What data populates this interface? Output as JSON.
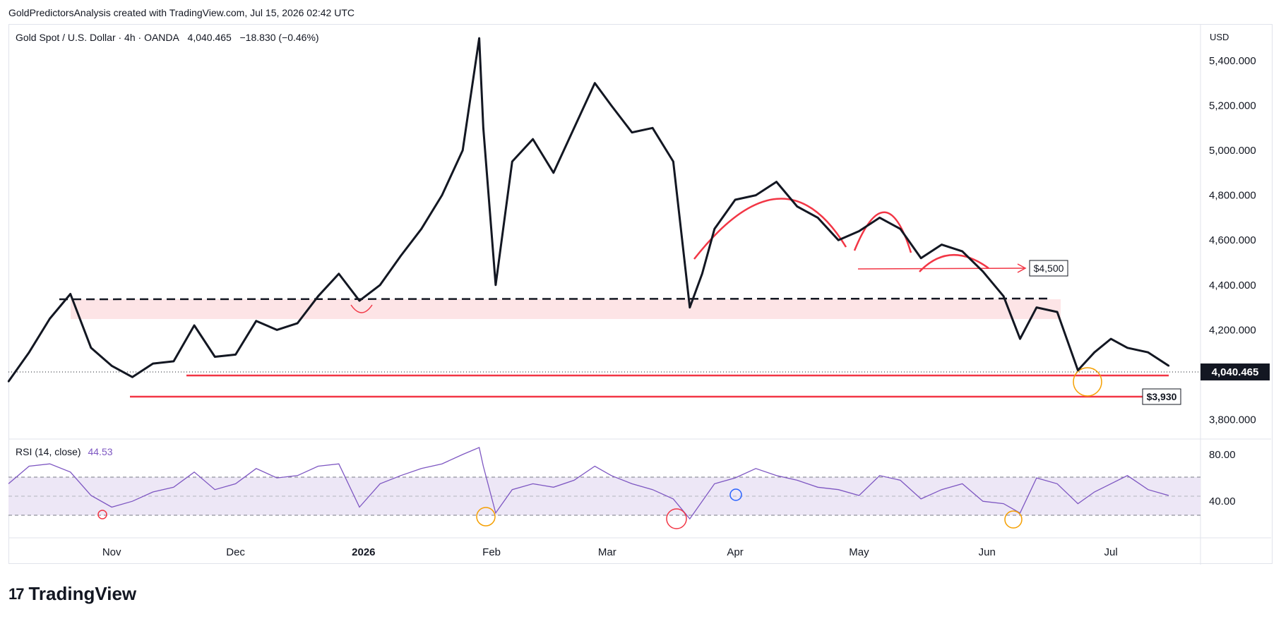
{
  "caption": "GoldPredictorsAnalysis created with TradingView.com, Jul 15, 2026 02:42 UTC",
  "legend": {
    "symbol": "Gold Spot / U.S. Dollar · 4h · OANDA",
    "price": "4,040.465",
    "change": "−18.830 (−0.46%)"
  },
  "currency": "USD",
  "rsi_legend": {
    "label": "RSI (14, close)",
    "value": "44.53"
  },
  "brand": {
    "logo": "17",
    "name": "TradingView"
  },
  "colors": {
    "price_line": "#131722",
    "annotation_red": "#f23645",
    "zone_fill": "#fde4e6",
    "rsi_line": "#7e57c2",
    "rsi_band": "#ede7f6",
    "orange": "#f59f00",
    "blue_circle": "#2962ff"
  },
  "chart_data": [
    {
      "type": "line",
      "series": [
        {
          "x": [
            "Oct 07",
            "Oct 12",
            "Oct 17",
            "Oct 22",
            "Oct 27",
            "Nov 01",
            "Nov 06",
            "Nov 11",
            "Nov 16",
            "Nov 21",
            "Nov 26",
            "Dec 01",
            "Dec 06",
            "Dec 11",
            "Dec 16",
            "Dec 21",
            "Dec 26",
            "Dec 31",
            "Jan 05",
            "Jan 10",
            "Jan 15",
            "Jan 20",
            "Jan 25",
            "Jan 29",
            "Jan 30",
            "Feb 02",
            "Feb 06",
            "Feb 11",
            "Feb 16",
            "Feb 21",
            "Feb 26",
            "Mar 02",
            "Mar 07",
            "Mar 12",
            "Mar 17",
            "Mar 21",
            "Mar 24",
            "Mar 27",
            "Apr 01",
            "Apr 06",
            "Apr 11",
            "Apr 16",
            "Apr 21",
            "Apr 26",
            "May 01",
            "May 06",
            "May 11",
            "May 16",
            "May 21",
            "May 26",
            "May 31",
            "Jun 05",
            "Jun 09",
            "Jun 13",
            "Jun 18",
            "Jun 23",
            "Jun 27",
            "Jul 01",
            "Jul 05",
            "Jul 10",
            "Jul 15"
          ],
          "values": [
            3970,
            4100,
            4250,
            4360,
            4120,
            4040,
            3990,
            4050,
            4060,
            4220,
            4080,
            4090,
            4240,
            4200,
            4230,
            4350,
            4450,
            4330,
            4400,
            4530,
            4650,
            4800,
            5000,
            5500,
            5100,
            4400,
            4950,
            5050,
            4900,
            5100,
            5300,
            5200,
            5080,
            5100,
            4950,
            4300,
            4450,
            4650,
            4780,
            4800,
            4860,
            4750,
            4700,
            4600,
            4640,
            4700,
            4650,
            4520,
            4580,
            4550,
            4460,
            4350,
            4160,
            4300,
            4280,
            4020,
            4100,
            4160,
            4120,
            4100,
            4040
          ]
        }
      ],
      "ylim": [
        3720,
        5560
      ],
      "y_ticks": [
        "3,800.000",
        "4,000.000",
        "4,200.000",
        "4,400.000",
        "4,600.000",
        "4,800.000",
        "5,000.000",
        "5,200.000",
        "5,400.000"
      ],
      "x_ticks": [
        "Nov",
        "Dec",
        "2026",
        "Feb",
        "Mar",
        "Apr",
        "May",
        "Jun",
        "Jul"
      ],
      "last_price": "4,040.465",
      "annotations": {
        "target": "$4,500",
        "support": "$3,930"
      }
    },
    {
      "type": "line",
      "series": [
        {
          "x": [
            "Oct 07",
            "Oct 12",
            "Oct 17",
            "Oct 22",
            "Oct 27",
            "Nov 01",
            "Nov 06",
            "Nov 11",
            "Nov 16",
            "Nov 21",
            "Nov 26",
            "Dec 01",
            "Dec 06",
            "Dec 11",
            "Dec 16",
            "Dec 21",
            "Dec 26",
            "Dec 31",
            "Jan 05",
            "Jan 10",
            "Jan 15",
            "Jan 20",
            "Jan 25",
            "Jan 29",
            "Jan 30",
            "Feb 02",
            "Feb 06",
            "Feb 11",
            "Feb 16",
            "Feb 21",
            "Feb 26",
            "Mar 02",
            "Mar 07",
            "Mar 12",
            "Mar 17",
            "Mar 21",
            "Mar 24",
            "Mar 27",
            "Apr 01",
            "Apr 06",
            "Apr 11",
            "Apr 16",
            "Apr 21",
            "Apr 26",
            "May 01",
            "May 06",
            "May 11",
            "May 16",
            "May 21",
            "May 26",
            "May 31",
            "Jun 05",
            "Jun 09",
            "Jun 13",
            "Jun 18",
            "Jun 23",
            "Jun 27",
            "Jul 01",
            "Jul 05",
            "Jul 10",
            "Jul 15"
          ],
          "values": [
            55,
            70,
            72,
            65,
            45,
            35,
            40,
            48,
            52,
            65,
            50,
            55,
            68,
            60,
            62,
            70,
            72,
            35,
            55,
            62,
            68,
            72,
            80,
            86,
            70,
            30,
            50,
            55,
            52,
            58,
            70,
            62,
            55,
            50,
            42,
            25,
            40,
            55,
            60,
            68,
            62,
            58,
            52,
            50,
            45,
            62,
            58,
            42,
            50,
            55,
            40,
            38,
            30,
            60,
            55,
            38,
            48,
            55,
            62,
            50,
            45
          ]
        }
      ],
      "ylim": [
        10,
        92
      ],
      "y_ticks": [
        "40.00",
        "80.00"
      ],
      "bands": [
        30,
        70
      ]
    }
  ]
}
